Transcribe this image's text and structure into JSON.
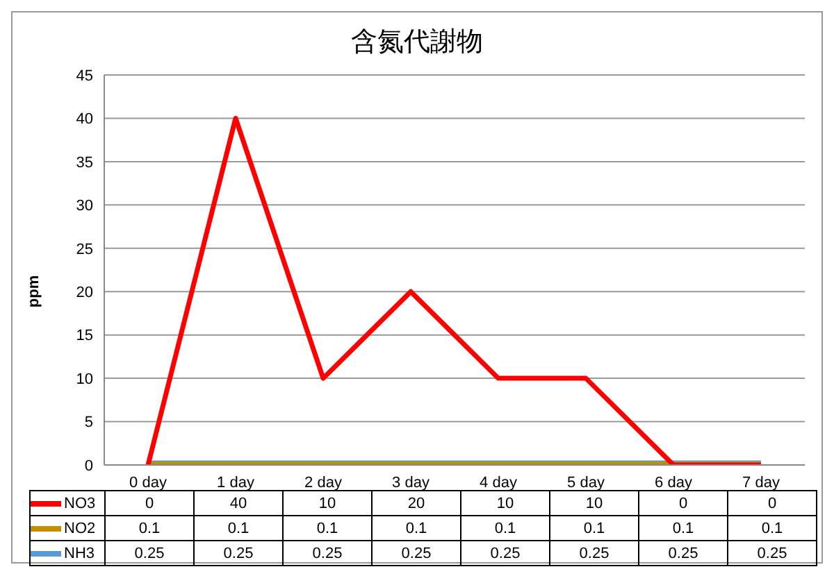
{
  "chart_data": {
    "type": "line",
    "title": "含氮代謝物",
    "ylabel": "ppm",
    "categories": [
      "0 day",
      "1 day",
      "2 day",
      "3 day",
      "4 day",
      "5 day",
      "6 day",
      "7 day"
    ],
    "series": [
      {
        "name": "NO3",
        "color": "#ff0000",
        "values": [
          0,
          40,
          10,
          20,
          10,
          10,
          0,
          0
        ]
      },
      {
        "name": "NO2",
        "color": "#bf9000",
        "values": [
          0.1,
          0.1,
          0.1,
          0.1,
          0.1,
          0.1,
          0.1,
          0.1
        ]
      },
      {
        "name": "NH3",
        "color": "#5b9bd5",
        "values": [
          0.25,
          0.25,
          0.25,
          0.25,
          0.25,
          0.25,
          0.25,
          0.25
        ]
      }
    ],
    "ylim": [
      0,
      45
    ],
    "yticks": [
      0,
      5,
      10,
      15,
      20,
      25,
      30,
      35,
      40,
      45
    ],
    "grid": "y",
    "legend": "bottom",
    "data_labels": true,
    "marker": "none",
    "line_style": "solid"
  }
}
